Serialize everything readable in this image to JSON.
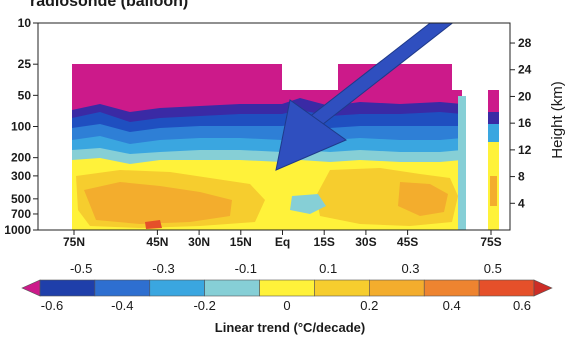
{
  "chart_data": {
    "type": "heatmap",
    "title": "radiosonde (balloon)",
    "ylabel_right": "Height (km)",
    "x_tick_labels": [
      "75N",
      "45N",
      "30N",
      "15N",
      "Eq",
      "15S",
      "30S",
      "45S",
      "75S"
    ],
    "y_axis": {
      "scale": "log",
      "unit": "hPa",
      "ticks": [
        10,
        25,
        50,
        100,
        200,
        300,
        500,
        700,
        1000
      ],
      "tick_labels": [
        "10",
        "25",
        "50",
        "100",
        "200",
        "300",
        "500",
        "700",
        "1000"
      ],
      "range": [
        1000,
        10
      ]
    },
    "y_axis_right": {
      "ticks": [
        28,
        24,
        20,
        16,
        12,
        8,
        4
      ],
      "tick_labels": [
        "28",
        "24",
        "20",
        "16",
        "12",
        "8",
        "4"
      ]
    },
    "colorbar": {
      "title": "Linear trend (°C/decade)",
      "range": [
        -0.6,
        0.6
      ],
      "labels_bottom": [
        "-0.6",
        "-0.4",
        "-0.2",
        "0",
        "0.2",
        "0.4",
        "0.6"
      ],
      "labels_top": [
        "-0.5",
        "-0.3",
        "-0.1",
        "0.1",
        "0.3",
        "0.5"
      ],
      "colors": [
        "#cc1a8a",
        "#1f3faa",
        "#2e6fd0",
        "#3aa6e0",
        "#86cfd6",
        "#fff23a",
        "#f6cd2e",
        "#f3ad2d",
        "#ee8430",
        "#e5502a",
        "#cc2d26"
      ]
    },
    "annotation": "arrow"
  }
}
